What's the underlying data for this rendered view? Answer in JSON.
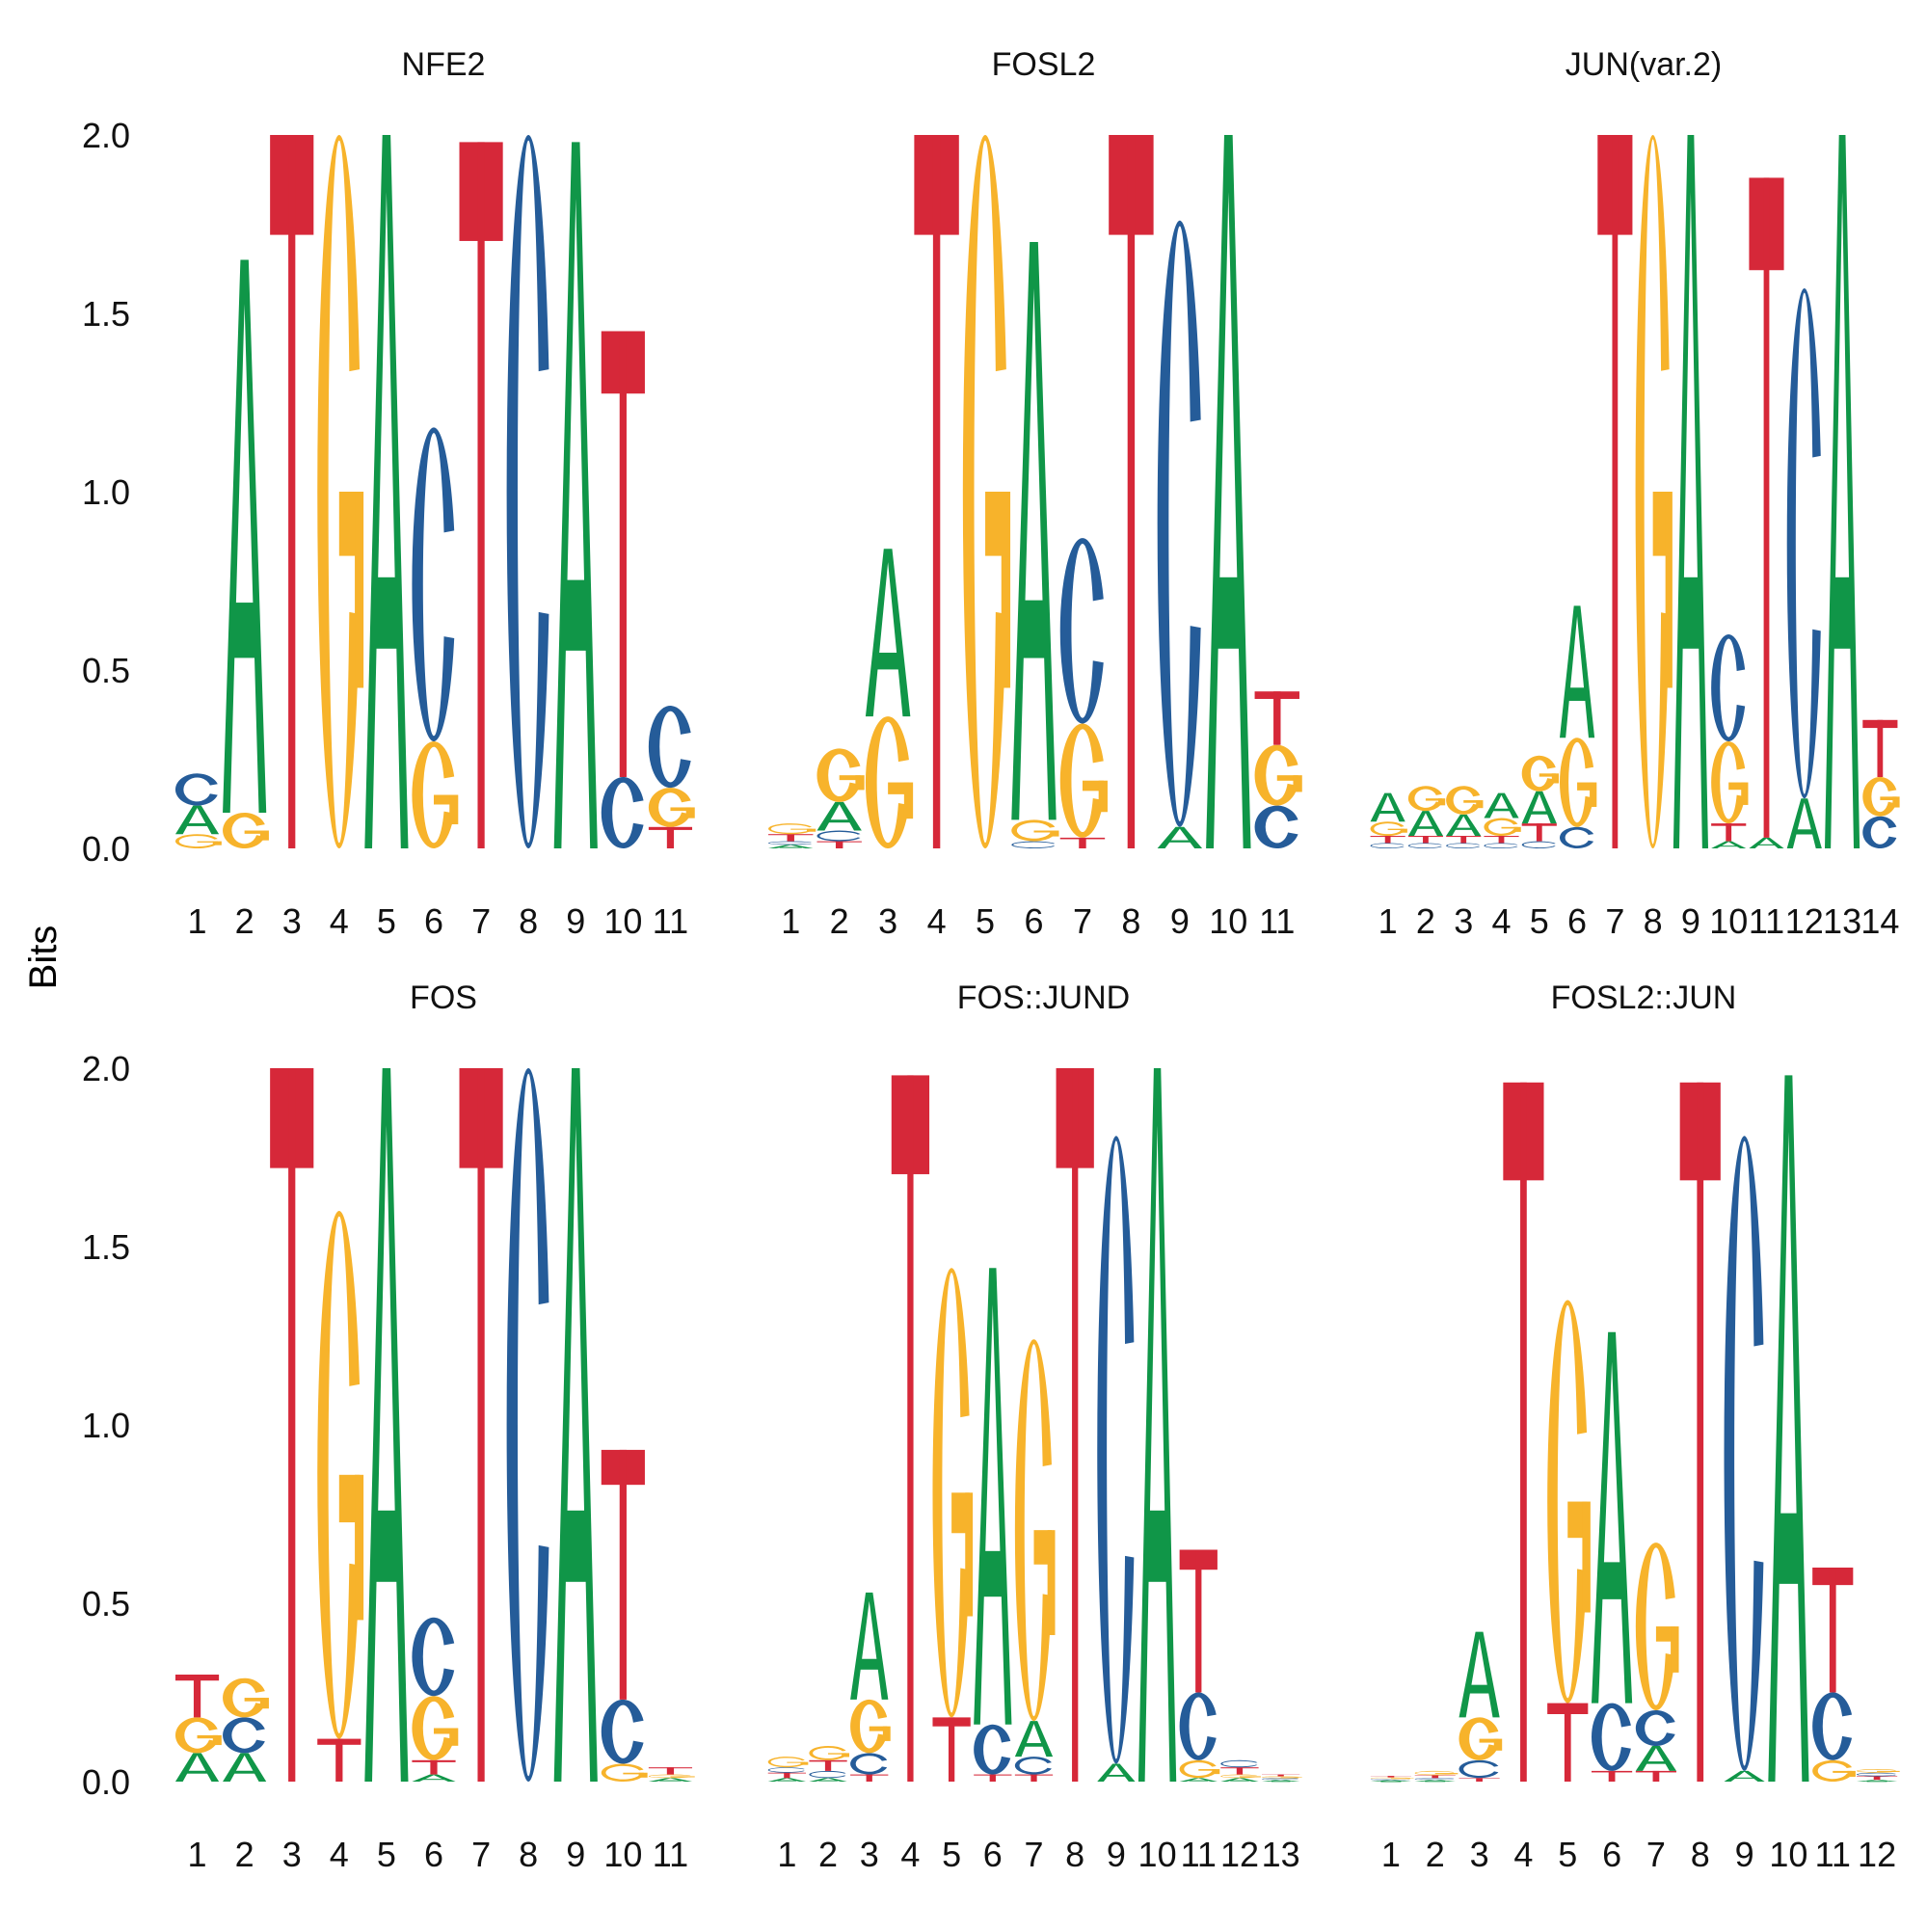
{
  "chart_data": {
    "type": "sequence-logo",
    "ylabel": "Bits",
    "ylim": [
      0,
      2
    ],
    "yticks": [
      "0.0",
      "0.5",
      "1.0",
      "1.5",
      "2.0"
    ],
    "colors": {
      "A": "#109648",
      "C": "#255C99",
      "G": "#F7B32B",
      "T": "#D62839"
    },
    "panels": [
      {
        "title": "NFE2",
        "positions": [
          [
            [
              "G",
              0.04
            ],
            [
              "A",
              0.08
            ],
            [
              "C",
              0.09
            ]
          ],
          [
            [
              "G",
              0.1
            ],
            [
              "A",
              1.55
            ]
          ],
          [
            [
              "T",
              2.0
            ]
          ],
          [
            [
              "G",
              2.0
            ]
          ],
          [
            [
              "A",
              2.0
            ]
          ],
          [
            [
              "G",
              0.3
            ],
            [
              "C",
              0.88
            ]
          ],
          [
            [
              "T",
              1.98
            ]
          ],
          [
            [
              "C",
              2.0
            ]
          ],
          [
            [
              "A",
              1.98
            ]
          ],
          [
            [
              "C",
              0.2
            ],
            [
              "T",
              1.25
            ]
          ],
          [
            [
              "T",
              0.06
            ],
            [
              "G",
              0.11
            ],
            [
              "C",
              0.23
            ]
          ]
        ]
      },
      {
        "title": "FOSL2",
        "positions": [
          [
            [
              "A",
              0.01
            ],
            [
              "C",
              0.01
            ],
            [
              "T",
              0.02
            ],
            [
              "G",
              0.03
            ]
          ],
          [
            [
              "T",
              0.02
            ],
            [
              "C",
              0.03
            ],
            [
              "A",
              0.08
            ],
            [
              "G",
              0.15
            ]
          ],
          [
            [
              "G",
              0.37
            ],
            [
              "A",
              0.47
            ]
          ],
          [
            [
              "T",
              2.0
            ]
          ],
          [
            [
              "G",
              2.0
            ]
          ],
          [
            [
              "C",
              0.02
            ],
            [
              "G",
              0.06
            ],
            [
              "A",
              1.62
            ]
          ],
          [
            [
              "T",
              0.03
            ],
            [
              "G",
              0.32
            ],
            [
              "C",
              0.52
            ]
          ],
          [
            [
              "T",
              2.0
            ]
          ],
          [
            [
              "A",
              0.06
            ],
            [
              "C",
              1.7
            ]
          ],
          [
            [
              "A",
              2.0
            ]
          ],
          [
            [
              "C",
              0.12
            ],
            [
              "G",
              0.17
            ],
            [
              "T",
              0.15
            ]
          ]
        ]
      },
      {
        "title": "JUN(var.2)",
        "positions": [
          [
            [
              "C",
              0.015
            ],
            [
              "T",
              0.02
            ],
            [
              "G",
              0.04
            ],
            [
              "A",
              0.08
            ]
          ],
          [
            [
              "C",
              0.015
            ],
            [
              "T",
              0.02
            ],
            [
              "A",
              0.07
            ],
            [
              "G",
              0.07
            ]
          ],
          [
            [
              "C",
              0.015
            ],
            [
              "T",
              0.02
            ],
            [
              "A",
              0.06
            ],
            [
              "G",
              0.08
            ]
          ],
          [
            [
              "C",
              0.015
            ],
            [
              "T",
              0.02
            ],
            [
              "G",
              0.05
            ],
            [
              "A",
              0.07
            ]
          ],
          [
            [
              "C",
              0.02
            ],
            [
              "T",
              0.05
            ],
            [
              "A",
              0.09
            ],
            [
              "G",
              0.1
            ]
          ],
          [
            [
              "C",
              0.06
            ],
            [
              "G",
              0.25
            ],
            [
              "A",
              0.37
            ]
          ],
          [
            [
              "T",
              2.0
            ]
          ],
          [
            [
              "G",
              2.0
            ]
          ],
          [
            [
              "A",
              2.0
            ]
          ],
          [
            [
              "A",
              0.02
            ],
            [
              "T",
              0.05
            ],
            [
              "G",
              0.23
            ],
            [
              "C",
              0.3
            ]
          ],
          [
            [
              "A",
              0.03
            ],
            [
              "T",
              1.85
            ]
          ],
          [
            [
              "A",
              0.14
            ],
            [
              "C",
              1.43
            ]
          ],
          [
            [
              "A",
              2.0
            ]
          ],
          [
            [
              "C",
              0.09
            ],
            [
              "G",
              0.11
            ],
            [
              "T",
              0.16
            ]
          ]
        ]
      },
      {
        "title": "FOS",
        "positions": [
          [
            [
              "A",
              0.08
            ],
            [
              "G",
              0.1
            ],
            [
              "T",
              0.12
            ]
          ],
          [
            [
              "A",
              0.08
            ],
            [
              "C",
              0.1
            ],
            [
              "G",
              0.11
            ]
          ],
          [
            [
              "T",
              2.0
            ]
          ],
          [
            [
              "T",
              0.12
            ],
            [
              "G",
              1.48
            ]
          ],
          [
            [
              "A",
              2.0
            ]
          ],
          [
            [
              "A",
              0.02
            ],
            [
              "T",
              0.04
            ],
            [
              "G",
              0.18
            ],
            [
              "C",
              0.22
            ]
          ],
          [
            [
              "T",
              2.0
            ]
          ],
          [
            [
              "C",
              2.0
            ]
          ],
          [
            [
              "A",
              2.0
            ]
          ],
          [
            [
              "G",
              0.05
            ],
            [
              "C",
              0.18
            ],
            [
              "T",
              0.7
            ]
          ],
          [
            [
              "A",
              0.01
            ],
            [
              "G",
              0.01
            ],
            [
              "T",
              0.02
            ]
          ]
        ]
      },
      {
        "title": "FOS::JUND",
        "positions": [
          [
            [
              "A",
              0.01
            ],
            [
              "T",
              0.015
            ],
            [
              "C",
              0.015
            ],
            [
              "G",
              0.03
            ]
          ],
          [
            [
              "A",
              0.01
            ],
            [
              "C",
              0.02
            ],
            [
              "T",
              0.03
            ],
            [
              "G",
              0.04
            ]
          ],
          [
            [
              "T",
              0.02
            ],
            [
              "C",
              0.06
            ],
            [
              "G",
              0.15
            ],
            [
              "A",
              0.3
            ]
          ],
          [
            [
              "T",
              1.98
            ]
          ],
          [
            [
              "T",
              0.18
            ],
            [
              "G",
              1.26
            ]
          ],
          [
            [
              "T",
              0.02
            ],
            [
              "C",
              0.14
            ],
            [
              "A",
              1.28
            ]
          ],
          [
            [
              "T",
              0.02
            ],
            [
              "C",
              0.05
            ],
            [
              "A",
              0.1
            ],
            [
              "G",
              1.07
            ]
          ],
          [
            [
              "T",
              2.0
            ]
          ],
          [
            [
              "A",
              0.05
            ],
            [
              "C",
              1.76
            ]
          ],
          [
            [
              "A",
              2.0
            ]
          ],
          [
            [
              "A",
              0.01
            ],
            [
              "G",
              0.05
            ],
            [
              "C",
              0.19
            ],
            [
              "T",
              0.4
            ]
          ],
          [
            [
              "A",
              0.01
            ],
            [
              "G",
              0.01
            ],
            [
              "T",
              0.02
            ],
            [
              "C",
              0.02
            ]
          ],
          [
            [
              "A",
              0.005
            ],
            [
              "C",
              0.005
            ],
            [
              "G",
              0.005
            ],
            [
              "T",
              0.005
            ]
          ]
        ]
      },
      {
        "title": "FOSL2::JUN",
        "positions": [
          [
            [
              "A",
              0.004
            ],
            [
              "C",
              0.004
            ],
            [
              "G",
              0.004
            ],
            [
              "T",
              0.004
            ]
          ],
          [
            [
              "A",
              0.005
            ],
            [
              "C",
              0.005
            ],
            [
              "T",
              0.008
            ],
            [
              "G",
              0.012
            ]
          ],
          [
            [
              "T",
              0.01
            ],
            [
              "C",
              0.05
            ],
            [
              "G",
              0.12
            ],
            [
              "A",
              0.24
            ]
          ],
          [
            [
              "T",
              1.96
            ]
          ],
          [
            [
              "T",
              0.22
            ],
            [
              "G",
              1.13
            ]
          ],
          [
            [
              "T",
              0.03
            ],
            [
              "C",
              0.19
            ],
            [
              "A",
              1.04
            ]
          ],
          [
            [
              "T",
              0.03
            ],
            [
              "A",
              0.07
            ],
            [
              "C",
              0.1
            ],
            [
              "G",
              0.47
            ]
          ],
          [
            [
              "T",
              1.96
            ]
          ],
          [
            [
              "A",
              0.03
            ],
            [
              "C",
              1.78
            ]
          ],
          [
            [
              "A",
              1.98
            ]
          ],
          [
            [
              "G",
              0.06
            ],
            [
              "C",
              0.19
            ],
            [
              "T",
              0.35
            ]
          ],
          [
            [
              "A",
              0.005
            ],
            [
              "T",
              0.01
            ],
            [
              "C",
              0.01
            ],
            [
              "G",
              0.01
            ]
          ]
        ]
      }
    ]
  }
}
